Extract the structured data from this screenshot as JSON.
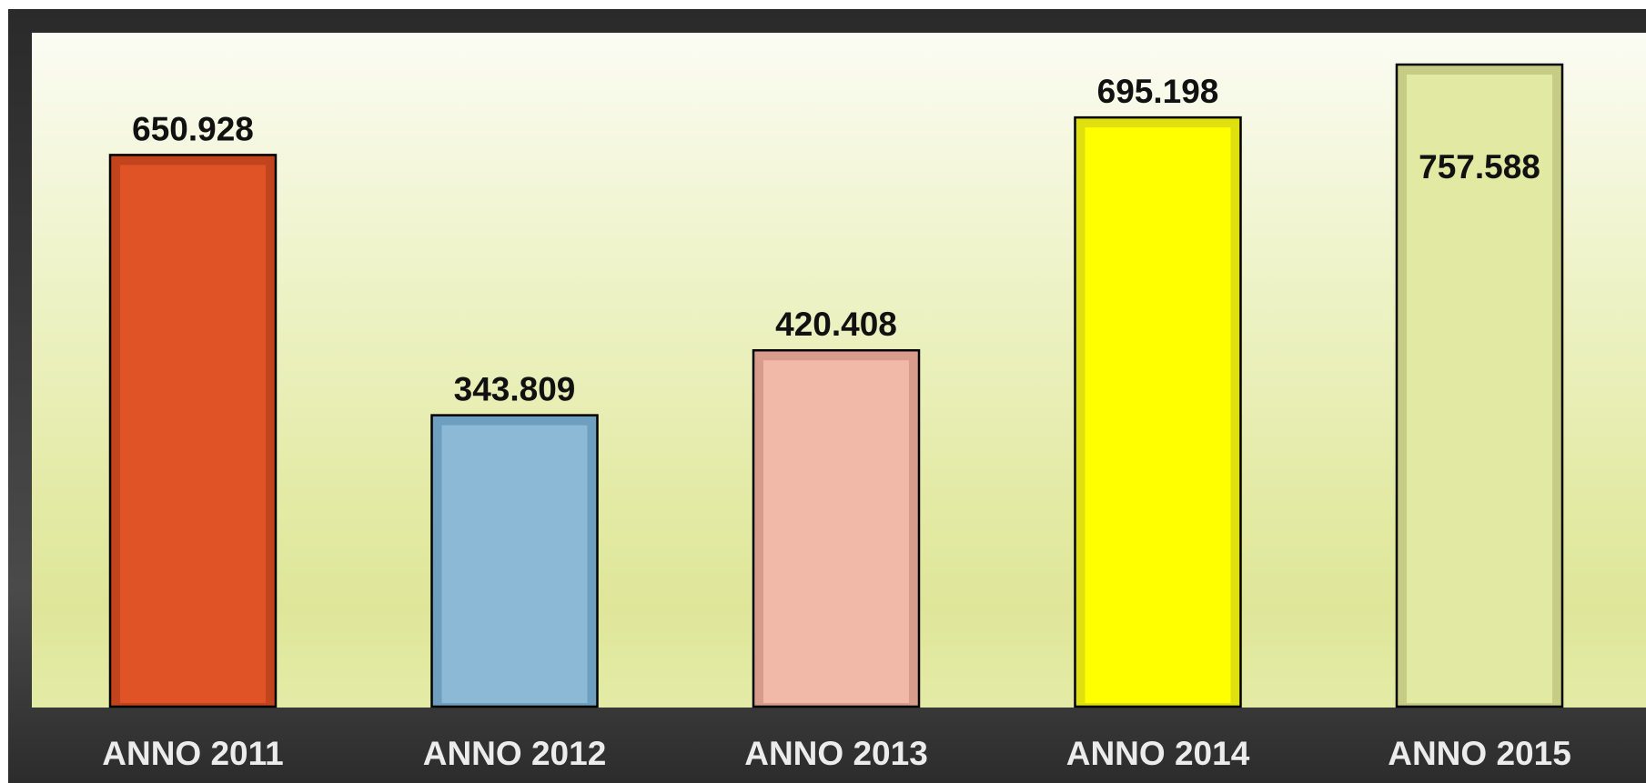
{
  "chart_data": {
    "type": "bar",
    "title": "",
    "xlabel": "",
    "ylabel": "",
    "ylim": [
      0,
      790000
    ],
    "grid": false,
    "categories": [
      "ANNO 2011",
      "ANNO 2012",
      "ANNO 2013",
      "ANNO 2014",
      "ANNO 2015"
    ],
    "values": [
      650928,
      343809,
      420408,
      695198,
      757588
    ],
    "value_labels": [
      "650.928",
      "343.809",
      "420.408",
      "695.198",
      "757.588"
    ],
    "value_label_inside": [
      false,
      false,
      false,
      false,
      true
    ],
    "colors": [
      {
        "fill": "#e05326",
        "border": "#c2441d"
      },
      {
        "fill": "#8cbad6",
        "border": "#6e9fbf"
      },
      {
        "fill": "#f1b9a8",
        "border": "#d89c8c"
      },
      {
        "fill": "#ffff00",
        "border": "#e0df0f"
      },
      {
        "fill": "#e1e9a2",
        "border": "#c6cc84"
      }
    ]
  }
}
